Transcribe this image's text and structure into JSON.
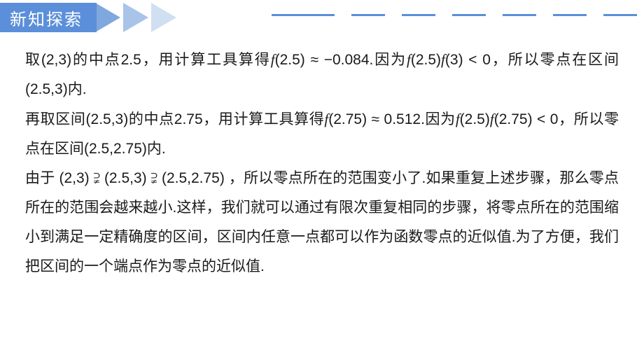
{
  "header": {
    "title": "新知探索",
    "accent_color": "#5b8fd9",
    "arrow_colors": [
      "#7fa8de",
      "#a8c4e8",
      "#d0dff2"
    ]
  },
  "content": {
    "p1_a": "取(2,3)的中点2.5，用计算工具算得",
    "p1_b": "(2.5) ≈ −0.084.因为",
    "p1_c": "(2.5)",
    "p1_d": "(3) < 0，所以零点在区间(2.5,3)内.",
    "p2_a": "再取区间(2.5,3)的中点2.75，用计算工具算得",
    "p2_b": "(2.75) ≈ 0.512.因为",
    "p2_c": "(2.5)",
    "p2_d": "(2.75) < 0，所以零点在区间(2.5,2.75)内.",
    "p3": "由于 (2,3) ⫌ (2.5,3) ⫌ (2.5,2.75) ，所以零点所在的范围变小了.如果重复上述步骤，那么零点所在的范围会越来越小.这样，我们就可以通过有限次重复相同的步骤，将零点所在的范围缩小到满足一定精确度的区间，区间内任意一点都可以作为函数零点的近似值.为了方便，我们把区间的一个端点作为零点的近似值.",
    "f": "f"
  }
}
